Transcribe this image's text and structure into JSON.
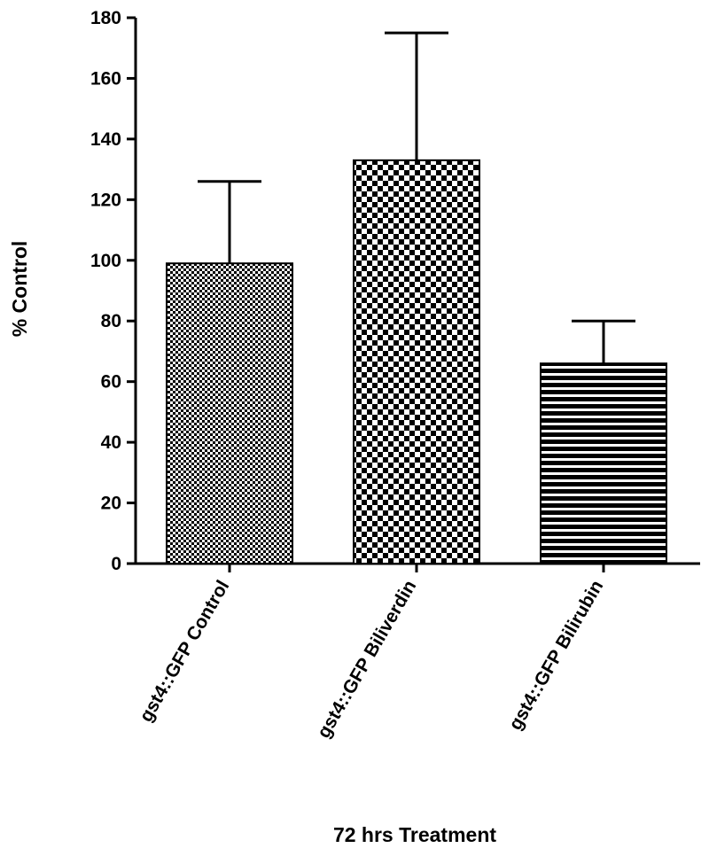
{
  "chart_data": {
    "type": "bar",
    "categories": [
      "gst4::GFP Control",
      "gst4::GFP Biliverdin",
      "gst4::GFP Bilirubin"
    ],
    "values": [
      99,
      133,
      66
    ],
    "error_upper": [
      126,
      175,
      80
    ],
    "patterns": [
      "fine-check",
      "coarse-check",
      "horizontal-stripes"
    ],
    "title": "",
    "xlabel": "72 hrs Treatment",
    "ylabel": "% Control",
    "ylim": [
      0,
      180
    ],
    "yticks": [
      0,
      20,
      40,
      60,
      80,
      100,
      120,
      140,
      160,
      180
    ],
    "grid": false,
    "legend": "none",
    "colors": {
      "bar_dark": "#000000",
      "bar_light": "#ffffff",
      "axis": "#000000"
    }
  }
}
